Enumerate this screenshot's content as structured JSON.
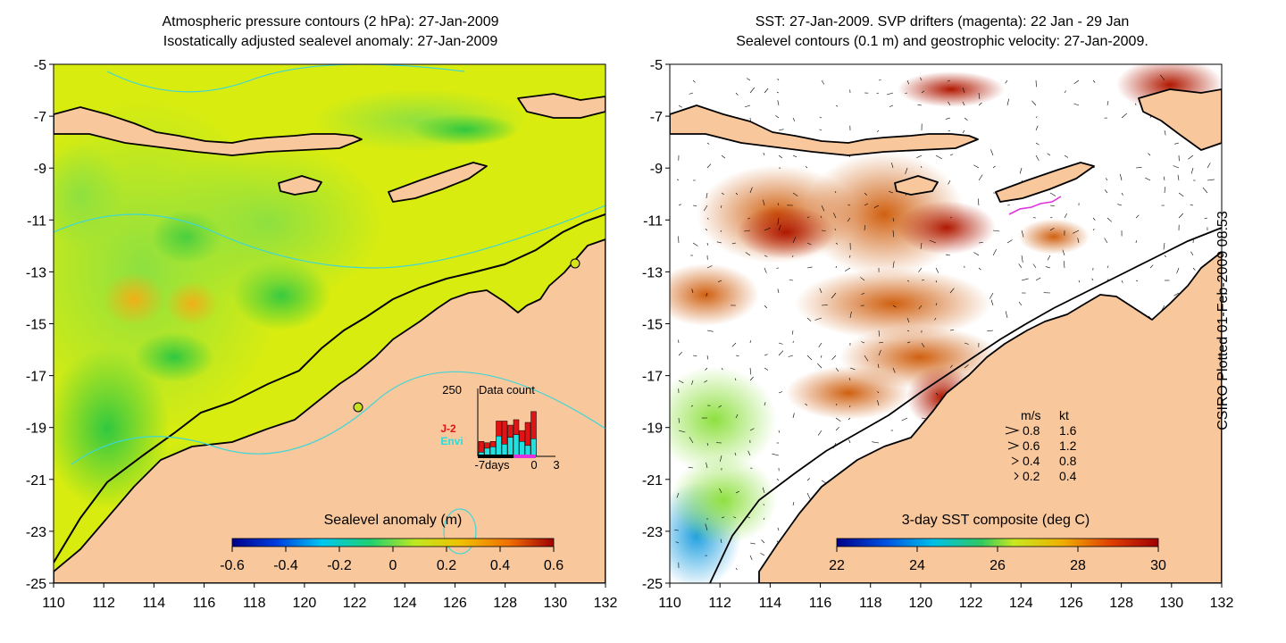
{
  "left_panel": {
    "title_line1": "Atmospheric pressure contours (2 hPa): 27-Jan-2009",
    "title_line2": "Isostatically adjusted sealevel anomaly: 27-Jan-2009",
    "colorbar_label": "Sealevel anomaly (m)",
    "colorbar_ticks": [
      "-0.6",
      "-0.4",
      "-0.2",
      "0",
      "0.2",
      "0.4",
      "0.6"
    ],
    "inset": {
      "title": "Data count",
      "y_max_label": "250",
      "x_labels": [
        "-7days",
        "0",
        "3"
      ],
      "legend_j2": "J-2",
      "legend_envi": "Envi",
      "bars_total": [
        55,
        50,
        55,
        130,
        130,
        115,
        135,
        95,
        125,
        165
      ],
      "bars_envi": [
        15,
        30,
        35,
        75,
        45,
        70,
        80,
        55,
        40,
        65
      ],
      "y_axis_max": 250
    }
  },
  "right_panel": {
    "title_line1": "SST: 27-Jan-2009. SVP drifters (magenta): 22 Jan - 29 Jan",
    "title_line2": "Sealevel contours (0.1 m) and geostrophic velocity: 27-Jan-2009.",
    "colorbar_label": "3-day SST composite (deg C)",
    "colorbar_ticks": [
      "22",
      "24",
      "26",
      "28",
      "30"
    ],
    "velocity_legend": {
      "header_ms": "m/s",
      "header_kt": "kt",
      "rows": [
        {
          "ms": "0.8",
          "kt": "1.6"
        },
        {
          "ms": "0.6",
          "kt": "1.2"
        },
        {
          "ms": "0.4",
          "kt": "0.8"
        },
        {
          "ms": "0.2",
          "kt": "0.4"
        }
      ]
    }
  },
  "axes": {
    "lat_ticks": [
      "-5",
      "-7",
      "-9",
      "-11",
      "-13",
      "-15",
      "-17",
      "-19",
      "-21",
      "-23",
      "-25"
    ],
    "lon_ticks": [
      "110",
      "112",
      "114",
      "116",
      "118",
      "120",
      "122",
      "124",
      "126",
      "128",
      "130",
      "132"
    ],
    "lat_range": [
      -25,
      -5
    ],
    "lon_range": [
      110,
      132
    ]
  },
  "side_label": "CSIRO Plotted 01-Feb-2009 08:53",
  "colors": {
    "land": "#f9c79c",
    "coast": "#000000",
    "contour_cyan": "#3fd6d6",
    "anomaly_base": "#d8ec10",
    "drifter": "#e030e0",
    "bar_j2": "#e01414",
    "bar_envi": "#20e0e0"
  }
}
